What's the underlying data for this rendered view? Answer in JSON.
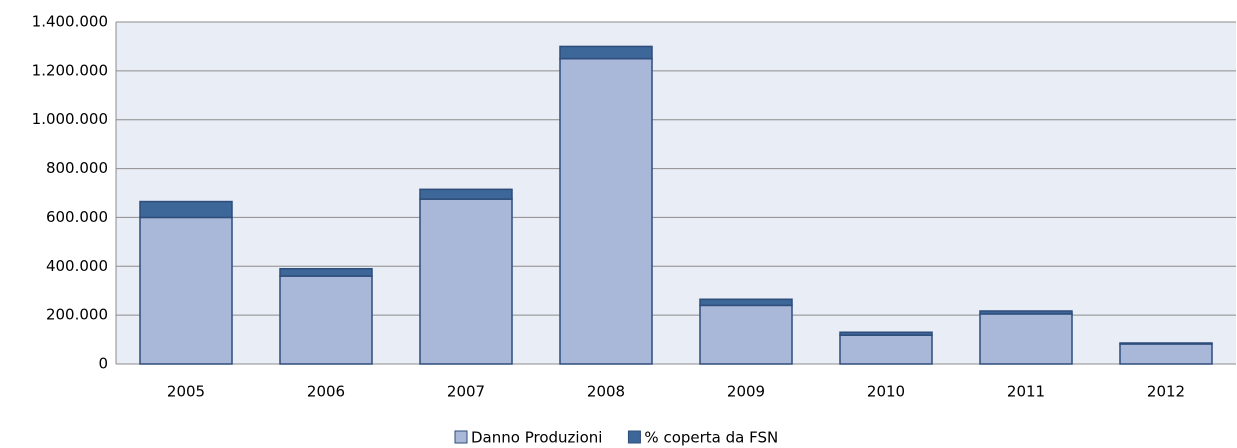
{
  "chart_data": {
    "type": "stacked_bar",
    "categories": [
      "2005",
      "2006",
      "2007",
      "2008",
      "2009",
      "2010",
      "2011",
      "2012"
    ],
    "series": [
      {
        "name": "Danno Produzioni",
        "color": "#a9b8d8",
        "values": [
          600000,
          360000,
          675000,
          1250000,
          240000,
          118000,
          205000,
          82000
        ]
      },
      {
        "name": "% coperta da FSN",
        "color": "#3d6699",
        "values": [
          65000,
          30000,
          40000,
          50000,
          25000,
          12000,
          12000,
          4000
        ]
      }
    ],
    "ylim": [
      0,
      1400000
    ],
    "yticks": [
      0,
      {
        "value": 200000,
        "label": "200.000"
      },
      {
        "value": 400000,
        "label": "400.000"
      },
      {
        "value": 600000,
        "label": "600.000"
      },
      {
        "value": 800000,
        "label": "800.000"
      },
      {
        "value": 1000000,
        "label": "1.000.000"
      },
      {
        "value": 1200000,
        "label": "1.200.000"
      },
      {
        "value": 1400000,
        "label": "1.400.000"
      }
    ],
    "grid": true,
    "legend": "bottom"
  }
}
